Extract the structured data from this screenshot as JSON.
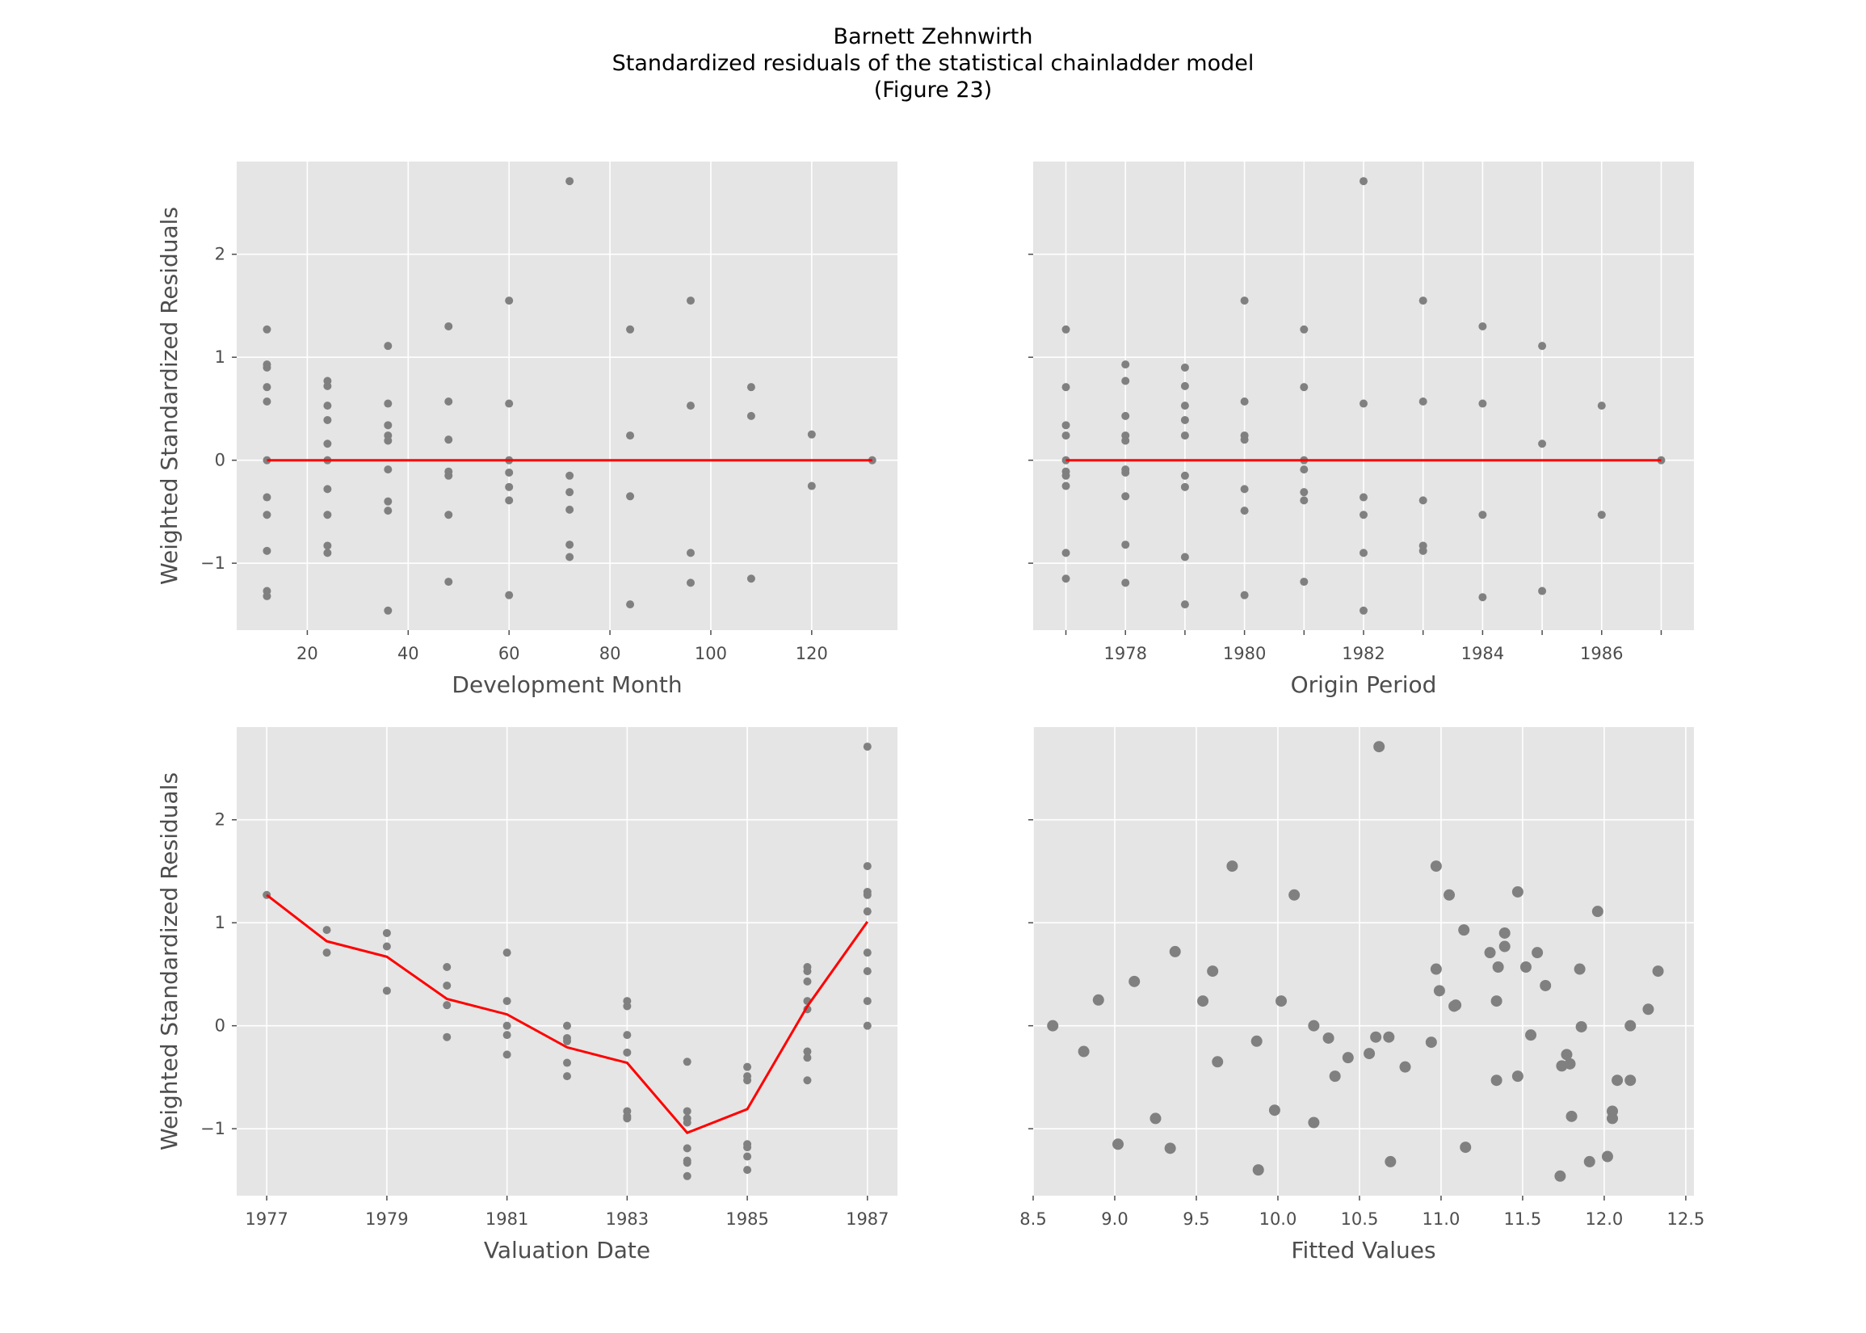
{
  "figure": {
    "title_lines": [
      "Barnett Zehnwirth",
      "Standardized residuals of the statistical chainladder model",
      "(Figure 23)"
    ],
    "background": "#ffffff",
    "panel_background": "#e5e5e5",
    "grid_color": "#ffffff",
    "point_color": "#808080",
    "line_color": "#ff0000"
  },
  "chart_data": [
    {
      "type": "scatter",
      "xlabel": "Development Month",
      "ylabel": "Weighted Standardized Residuals",
      "xlim": [
        6,
        137
      ],
      "ylim": [
        -1.65,
        2.9
      ],
      "xticks": [
        20,
        40,
        60,
        80,
        100,
        120
      ],
      "xtick_labels": [
        "20",
        "40",
        "60",
        "80",
        "100",
        "120"
      ],
      "yticks": [
        -1,
        0,
        1,
        2
      ],
      "ytick_labels": [
        "−1",
        "0",
        "1",
        "2"
      ],
      "show_ytick_labels": true,
      "grid": true,
      "points": [
        [
          12,
          1.27
        ],
        [
          12,
          0.93
        ],
        [
          12,
          0.9
        ],
        [
          12,
          0.71
        ],
        [
          12,
          0.57
        ],
        [
          12,
          0.0
        ],
        [
          12,
          -0.36
        ],
        [
          12,
          -0.53
        ],
        [
          12,
          -0.88
        ],
        [
          12,
          -1.27
        ],
        [
          12,
          -1.32
        ],
        [
          24,
          0.77
        ],
        [
          24,
          0.72
        ],
        [
          24,
          0.53
        ],
        [
          24,
          0.39
        ],
        [
          24,
          0.16
        ],
        [
          24,
          0.0
        ],
        [
          24,
          -0.28
        ],
        [
          24,
          -0.53
        ],
        [
          24,
          -0.83
        ],
        [
          24,
          -0.9
        ],
        [
          36,
          1.11
        ],
        [
          36,
          0.55
        ],
        [
          36,
          0.34
        ],
        [
          36,
          0.24
        ],
        [
          36,
          0.19
        ],
        [
          36,
          -0.09
        ],
        [
          36,
          -0.4
        ],
        [
          36,
          -0.49
        ],
        [
          36,
          -1.46
        ],
        [
          48,
          1.3
        ],
        [
          48,
          0.57
        ],
        [
          48,
          0.2
        ],
        [
          48,
          -0.11
        ],
        [
          48,
          -0.15
        ],
        [
          48,
          -0.53
        ],
        [
          48,
          -1.18
        ],
        [
          60,
          1.55
        ],
        [
          60,
          0.55
        ],
        [
          60,
          0.0
        ],
        [
          60,
          -0.12
        ],
        [
          60,
          -0.26
        ],
        [
          60,
          -0.39
        ],
        [
          60,
          -1.31
        ],
        [
          72,
          2.71
        ],
        [
          72,
          -0.15
        ],
        [
          72,
          -0.31
        ],
        [
          72,
          -0.48
        ],
        [
          72,
          -0.82
        ],
        [
          72,
          -0.94
        ],
        [
          84,
          1.27
        ],
        [
          84,
          0.24
        ],
        [
          84,
          -0.35
        ],
        [
          84,
          -1.4
        ],
        [
          96,
          1.55
        ],
        [
          96,
          0.53
        ],
        [
          96,
          -0.9
        ],
        [
          96,
          -1.19
        ],
        [
          108,
          0.71
        ],
        [
          108,
          0.43
        ],
        [
          108,
          -1.15
        ],
        [
          120,
          0.25
        ],
        [
          120,
          -0.25
        ],
        [
          132,
          0.0
        ]
      ],
      "trend": {
        "x": [
          12,
          132
        ],
        "y": [
          0.0,
          0.0
        ]
      }
    },
    {
      "type": "scatter",
      "xlabel": "Origin Period",
      "ylabel": "",
      "xlim": [
        1976.45,
        1987.55
      ],
      "ylim": [
        -1.65,
        2.9
      ],
      "xticks": [
        1977,
        1978,
        1979,
        1980,
        1981,
        1982,
        1983,
        1984,
        1985,
        1986,
        1987
      ],
      "xtick_labels": [
        "",
        "1978",
        "",
        "1980",
        "",
        "1982",
        "",
        "1984",
        "",
        "1986",
        ""
      ],
      "yticks": [
        -1,
        0,
        1,
        2
      ],
      "ytick_labels": [
        "−1",
        "0",
        "1",
        "2"
      ],
      "show_ytick_labels": false,
      "grid": true,
      "points": [
        [
          1977,
          1.27
        ],
        [
          1977,
          0.71
        ],
        [
          1977,
          0.34
        ],
        [
          1977,
          0.24
        ],
        [
          1977,
          0.0
        ],
        [
          1977,
          -0.11
        ],
        [
          1977,
          -0.15
        ],
        [
          1977,
          -0.25
        ],
        [
          1977,
          -0.9
        ],
        [
          1977,
          -1.15
        ],
        [
          1978,
          0.93
        ],
        [
          1978,
          0.77
        ],
        [
          1978,
          0.43
        ],
        [
          1978,
          0.24
        ],
        [
          1978,
          0.19
        ],
        [
          1978,
          -0.09
        ],
        [
          1978,
          -0.12
        ],
        [
          1978,
          -0.35
        ],
        [
          1978,
          -0.82
        ],
        [
          1978,
          -1.19
        ],
        [
          1979,
          0.9
        ],
        [
          1979,
          0.72
        ],
        [
          1979,
          0.53
        ],
        [
          1979,
          0.39
        ],
        [
          1979,
          0.24
        ],
        [
          1979,
          -0.15
        ],
        [
          1979,
          -0.26
        ],
        [
          1979,
          -0.94
        ],
        [
          1979,
          -1.4
        ],
        [
          1980,
          1.55
        ],
        [
          1980,
          0.57
        ],
        [
          1980,
          0.24
        ],
        [
          1980,
          0.2
        ],
        [
          1980,
          -0.28
        ],
        [
          1980,
          -0.49
        ],
        [
          1980,
          -1.31
        ],
        [
          1981,
          1.27
        ],
        [
          1981,
          0.71
        ],
        [
          1981,
          0.0
        ],
        [
          1981,
          -0.09
        ],
        [
          1981,
          -0.31
        ],
        [
          1981,
          -0.39
        ],
        [
          1981,
          -1.18
        ],
        [
          1982,
          2.71
        ],
        [
          1982,
          0.55
        ],
        [
          1982,
          -0.36
        ],
        [
          1982,
          -0.53
        ],
        [
          1982,
          -0.9
        ],
        [
          1982,
          -1.46
        ],
        [
          1983,
          1.55
        ],
        [
          1983,
          0.57
        ],
        [
          1983,
          -0.39
        ],
        [
          1983,
          -0.83
        ],
        [
          1983,
          -0.88
        ],
        [
          1984,
          1.3
        ],
        [
          1984,
          0.55
        ],
        [
          1984,
          -0.53
        ],
        [
          1984,
          -1.33
        ],
        [
          1985,
          1.11
        ],
        [
          1985,
          0.16
        ],
        [
          1985,
          -1.27
        ],
        [
          1986,
          0.53
        ],
        [
          1986,
          -0.53
        ],
        [
          1987,
          0.0
        ]
      ],
      "trend": {
        "x": [
          1977,
          1987
        ],
        "y": [
          0.0,
          0.0
        ]
      }
    },
    {
      "type": "scatter",
      "xlabel": "Valuation Date",
      "ylabel": "Weighted Standardized Residuals",
      "xlim": [
        1976.5,
        1987.5
      ],
      "ylim": [
        -1.65,
        2.9
      ],
      "xticks": [
        1977,
        1979,
        1981,
        1983,
        1985,
        1987
      ],
      "xtick_labels": [
        "1977",
        "1979",
        "1981",
        "1983",
        "1985",
        "1987"
      ],
      "yticks": [
        -1,
        0,
        1,
        2
      ],
      "ytick_labels": [
        "−1",
        "0",
        "1",
        "2"
      ],
      "show_ytick_labels": true,
      "grid": true,
      "points": [
        [
          1977,
          1.27
        ],
        [
          1978,
          0.93
        ],
        [
          1978,
          0.71
        ],
        [
          1979,
          0.9
        ],
        [
          1979,
          0.77
        ],
        [
          1979,
          0.34
        ],
        [
          1980,
          0.57
        ],
        [
          1980,
          0.39
        ],
        [
          1980,
          0.2
        ],
        [
          1980,
          -0.11
        ],
        [
          1981,
          0.71
        ],
        [
          1981,
          0.24
        ],
        [
          1981,
          0.0
        ],
        [
          1981,
          -0.09
        ],
        [
          1981,
          -0.28
        ],
        [
          1982,
          0.0
        ],
        [
          1982,
          -0.12
        ],
        [
          1982,
          -0.15
        ],
        [
          1982,
          -0.36
        ],
        [
          1982,
          -0.49
        ],
        [
          1983,
          0.24
        ],
        [
          1983,
          0.19
        ],
        [
          1983,
          -0.09
        ],
        [
          1983,
          -0.26
        ],
        [
          1983,
          -0.83
        ],
        [
          1983,
          -0.88
        ],
        [
          1983,
          -0.9
        ],
        [
          1984,
          -0.35
        ],
        [
          1984,
          -0.83
        ],
        [
          1984,
          -0.9
        ],
        [
          1984,
          -0.94
        ],
        [
          1984,
          -1.19
        ],
        [
          1984,
          -1.31
        ],
        [
          1984,
          -1.33
        ],
        [
          1984,
          -1.46
        ],
        [
          1985,
          -0.4
        ],
        [
          1985,
          -0.49
        ],
        [
          1985,
          -0.53
        ],
        [
          1985,
          -1.15
        ],
        [
          1985,
          -1.18
        ],
        [
          1985,
          -1.27
        ],
        [
          1985,
          -1.4
        ],
        [
          1986,
          0.57
        ],
        [
          1986,
          0.53
        ],
        [
          1986,
          0.43
        ],
        [
          1986,
          0.24
        ],
        [
          1986,
          0.16
        ],
        [
          1986,
          -0.25
        ],
        [
          1986,
          -0.31
        ],
        [
          1986,
          -0.53
        ],
        [
          1987,
          2.71
        ],
        [
          1987,
          1.55
        ],
        [
          1987,
          1.3
        ],
        [
          1987,
          1.27
        ],
        [
          1987,
          1.11
        ],
        [
          1987,
          0.71
        ],
        [
          1987,
          0.53
        ],
        [
          1987,
          0.24
        ],
        [
          1987,
          0.0
        ]
      ],
      "trend": {
        "x": [
          1977,
          1978,
          1979,
          1980,
          1981,
          1982,
          1983,
          1984,
          1985,
          1986,
          1987
        ],
        "y": [
          1.27,
          0.82,
          0.67,
          0.26,
          0.11,
          -0.21,
          -0.36,
          -1.04,
          -0.81,
          0.19,
          1.01
        ]
      }
    },
    {
      "type": "scatter",
      "xlabel": "Fitted Values",
      "ylabel": "",
      "xlim": [
        8.5,
        12.55
      ],
      "ylim": [
        -1.65,
        2.9
      ],
      "xticks": [
        8.5,
        9.0,
        9.5,
        10.0,
        10.5,
        11.0,
        11.5,
        12.0,
        12.5
      ],
      "xtick_labels": [
        "8.5",
        "9.0",
        "9.5",
        "10.0",
        "10.5",
        "11.0",
        "11.5",
        "12.0",
        "12.5"
      ],
      "yticks": [
        -1,
        0,
        1,
        2
      ],
      "ytick_labels": [
        "−1",
        "0",
        "1",
        "2"
      ],
      "show_ytick_labels": false,
      "grid": true,
      "points": [
        [
          8.62,
          0.0
        ],
        [
          8.81,
          -0.25
        ],
        [
          8.9,
          0.25
        ],
        [
          9.02,
          -1.15
        ],
        [
          9.12,
          0.43
        ],
        [
          9.25,
          -0.9
        ],
        [
          9.34,
          -1.19
        ],
        [
          9.37,
          0.72
        ],
        [
          9.54,
          0.24
        ],
        [
          9.6,
          0.53
        ],
        [
          9.63,
          -0.35
        ],
        [
          9.72,
          1.55
        ],
        [
          9.87,
          -0.15
        ],
        [
          9.88,
          -1.4
        ],
        [
          9.98,
          -0.82
        ],
        [
          10.02,
          0.24
        ],
        [
          10.1,
          1.27
        ],
        [
          10.22,
          -0.94
        ],
        [
          10.22,
          0.0
        ],
        [
          10.31,
          -0.12
        ],
        [
          10.35,
          -0.49
        ],
        [
          10.43,
          -0.31
        ],
        [
          10.56,
          -0.27
        ],
        [
          10.6,
          -0.11
        ],
        [
          10.62,
          2.71
        ],
        [
          10.68,
          -0.11
        ],
        [
          10.69,
          -1.32
        ],
        [
          10.78,
          -0.4
        ],
        [
          10.94,
          -0.16
        ],
        [
          10.97,
          1.55
        ],
        [
          10.97,
          0.55
        ],
        [
          10.99,
          0.34
        ],
        [
          11.05,
          1.27
        ],
        [
          11.08,
          0.19
        ],
        [
          11.09,
          0.2
        ],
        [
          11.14,
          0.93
        ],
        [
          11.15,
          -1.18
        ],
        [
          11.3,
          0.71
        ],
        [
          11.34,
          0.24
        ],
        [
          11.34,
          -0.53
        ],
        [
          11.35,
          0.57
        ],
        [
          11.39,
          0.77
        ],
        [
          11.39,
          0.9
        ],
        [
          11.47,
          1.3
        ],
        [
          11.47,
          -0.49
        ],
        [
          11.52,
          0.57
        ],
        [
          11.55,
          -0.09
        ],
        [
          11.59,
          0.71
        ],
        [
          11.64,
          0.39
        ],
        [
          11.73,
          -1.46
        ],
        [
          11.74,
          -0.39
        ],
        [
          11.77,
          -0.28
        ],
        [
          11.79,
          -0.37
        ],
        [
          11.8,
          -0.88
        ],
        [
          11.85,
          0.55
        ],
        [
          11.86,
          -0.01
        ],
        [
          11.91,
          -1.32
        ],
        [
          11.96,
          1.11
        ],
        [
          12.02,
          -1.27
        ],
        [
          12.05,
          -0.9
        ],
        [
          12.05,
          -0.83
        ],
        [
          12.08,
          -0.53
        ],
        [
          12.16,
          0.0
        ],
        [
          12.16,
          -0.53
        ],
        [
          12.27,
          0.16
        ],
        [
          12.33,
          0.53
        ]
      ]
    }
  ]
}
